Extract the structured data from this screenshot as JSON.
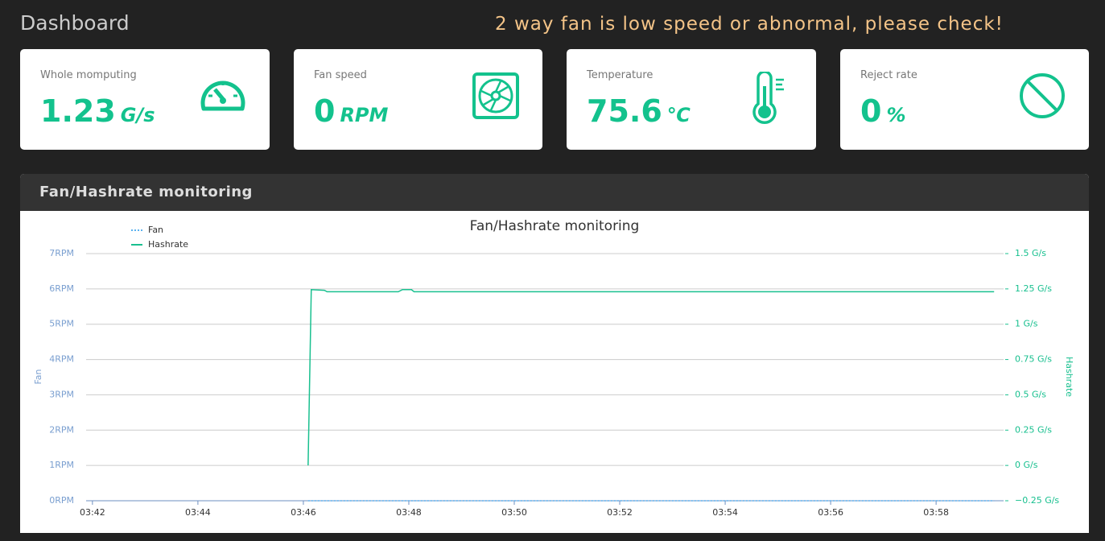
{
  "header": {
    "title": "Dashboard",
    "warning": "2 way fan is low speed or abnormal, please check!"
  },
  "cards": [
    {
      "label": "Whole momputing",
      "value": "1.23",
      "unit": "G/s"
    },
    {
      "label": "Fan speed",
      "value": "0",
      "unit": "RPM"
    },
    {
      "label": "Temperature",
      "value": "75.6",
      "unit": "℃"
    },
    {
      "label": "Reject rate",
      "value": "0",
      "unit": "%"
    }
  ],
  "panel_title": "Fan/Hashrate monitoring",
  "chart_data": {
    "type": "line",
    "title": "Fan/Hashrate monitoring",
    "y_label": "Fan",
    "y2_label": "Hashrate",
    "x": [
      46.09,
      46.15,
      46.4,
      46.45,
      47.8,
      47.88,
      48.05,
      48.1,
      59.1
    ],
    "series": [
      {
        "name": "Fan",
        "color": "#5ab1ef",
        "style": "dotted",
        "values": [
          0,
          0,
          0,
          0,
          0,
          0,
          0,
          0,
          0
        ]
      },
      {
        "name": "Hashrate",
        "color": "#19c08f",
        "axis": "y2",
        "values": [
          0,
          1.245,
          1.24,
          1.23,
          1.23,
          1.245,
          1.245,
          1.23,
          1.23
        ]
      }
    ],
    "xlim": [
      41.88,
      59.28
    ],
    "xticks": [
      {
        "value": 42,
        "label": "03:42"
      },
      {
        "value": 44,
        "label": "03:44"
      },
      {
        "value": 46,
        "label": "03:46"
      },
      {
        "value": 48,
        "label": "03:48"
      },
      {
        "value": 50,
        "label": "03:50"
      },
      {
        "value": 52,
        "label": "03:52"
      },
      {
        "value": 54,
        "label": "03:54"
      },
      {
        "value": 56,
        "label": "03:56"
      },
      {
        "value": 58,
        "label": "03:58"
      }
    ],
    "ylim": [
      0,
      7
    ],
    "yticks": [
      {
        "value": 0,
        "label": "0RPM"
      },
      {
        "value": 1,
        "label": "1RPM"
      },
      {
        "value": 2,
        "label": "2RPM"
      },
      {
        "value": 3,
        "label": "3RPM"
      },
      {
        "value": 4,
        "label": "4RPM"
      },
      {
        "value": 5,
        "label": "5RPM"
      },
      {
        "value": 6,
        "label": "6RPM"
      },
      {
        "value": 7,
        "label": "7RPM"
      }
    ],
    "y2lim": [
      -0.25,
      1.5
    ],
    "y2ticks": [
      {
        "value": -0.25,
        "label": "−0.25 G/s"
      },
      {
        "value": 0,
        "label": "0 G/s"
      },
      {
        "value": 0.25,
        "label": "0.25 G/s"
      },
      {
        "value": 0.5,
        "label": "0.5 G/s"
      },
      {
        "value": 0.75,
        "label": "0.75 G/s"
      },
      {
        "value": 1,
        "label": "1 G/s"
      },
      {
        "value": 1.25,
        "label": "1.25 G/s"
      },
      {
        "value": 1.5,
        "label": "1.5 G/s"
      }
    ],
    "grid": true,
    "legend": "top-left"
  }
}
